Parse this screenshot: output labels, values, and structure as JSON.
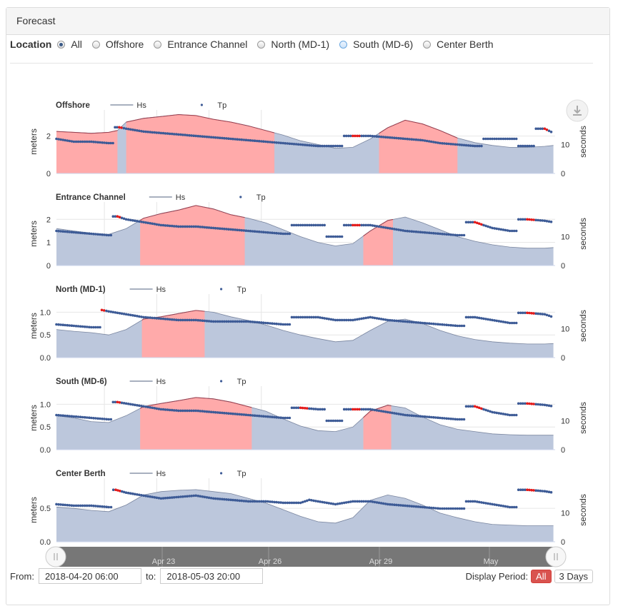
{
  "panel": {
    "title": "Forecast"
  },
  "location": {
    "label": "Location",
    "options": [
      "All",
      "Offshore",
      "Entrance Channel",
      "North (MD-1)",
      "South (MD-6)",
      "Center Berth"
    ],
    "selected": "All"
  },
  "legend": {
    "hs": "Hs",
    "tp": "Tp"
  },
  "axes": {
    "left": "meters",
    "right": "seconds"
  },
  "x_ticks": [
    "Apr 23",
    "Apr 26",
    "Apr 29",
    "May"
  ],
  "navigator_ticks": [
    "Apr 23",
    "Apr 26",
    "Apr 29",
    "May"
  ],
  "range": {
    "from_label": "From:",
    "from": "2018-04-20 06:00",
    "to_label": "to:",
    "to": "2018-05-03 20:00"
  },
  "period": {
    "label": "Display Period:",
    "options": [
      "All",
      "3 Days"
    ],
    "selected": "All"
  },
  "colors": {
    "hs_fill": "#bcc7dc",
    "hs_line": "#51607f",
    "exceed_fill": "#ffaaaa",
    "exceed_line": "#e31a1a",
    "tp_dot": "#3d5b96",
    "tp_dot_hi": "#e31a1a"
  },
  "chart_data": [
    {
      "type": "area",
      "title": "Offshore",
      "x_unit": "day offset from 2018-04-20 06:00",
      "ylabel": "meters",
      "ylim": [
        0,
        3.4
      ],
      "yticks": [
        "0",
        "2"
      ],
      "y2label": "seconds",
      "y2lim": [
        0,
        22
      ],
      "y2ticks": [
        "0",
        "10"
      ],
      "hs": [
        [
          0,
          2.25
        ],
        [
          1,
          2.2
        ],
        [
          2,
          2.15
        ],
        [
          3,
          2.2
        ],
        [
          3.5,
          2.3
        ],
        [
          4,
          2.75
        ],
        [
          5,
          2.95
        ],
        [
          6,
          3.05
        ],
        [
          7,
          3.15
        ],
        [
          8,
          3.1
        ],
        [
          9,
          2.9
        ],
        [
          10,
          2.75
        ],
        [
          11,
          2.55
        ],
        [
          12,
          2.3
        ],
        [
          13,
          2.05
        ],
        [
          14,
          1.75
        ],
        [
          15,
          1.55
        ],
        [
          16,
          1.35
        ],
        [
          17,
          1.4
        ],
        [
          18,
          1.85
        ],
        [
          19,
          2.45
        ],
        [
          20,
          2.85
        ],
        [
          21,
          2.65
        ],
        [
          22,
          2.3
        ],
        [
          23,
          1.9
        ],
        [
          24,
          1.65
        ],
        [
          25,
          1.5
        ],
        [
          26,
          1.4
        ],
        [
          27,
          1.4
        ],
        [
          28,
          1.45
        ],
        [
          28.5,
          1.5
        ]
      ],
      "exceed": [
        [
          0,
          3.5
        ],
        [
          4,
          12.5
        ],
        [
          18.5,
          23
        ]
      ],
      "tp": [
        [
          0,
          12
        ],
        [
          1,
          11
        ],
        [
          2,
          11
        ],
        [
          3,
          10.5
        ],
        [
          3.6,
          16
        ],
        [
          4,
          15.5
        ],
        [
          5,
          14.5
        ],
        [
          6,
          14
        ],
        [
          7,
          13.5
        ],
        [
          8,
          13
        ],
        [
          9,
          12.5
        ],
        [
          10,
          12
        ],
        [
          11,
          11.5
        ],
        [
          12,
          11
        ],
        [
          13,
          10.5
        ],
        [
          14,
          10
        ],
        [
          15,
          9.5
        ],
        [
          16,
          9.5
        ],
        [
          17,
          13
        ],
        [
          18,
          13
        ],
        [
          19,
          12.5
        ],
        [
          20,
          12
        ],
        [
          21,
          11.5
        ],
        [
          22,
          10.5
        ],
        [
          23,
          10
        ],
        [
          24,
          9.5
        ],
        [
          25,
          12
        ],
        [
          26,
          12
        ],
        [
          27,
          9.5
        ],
        [
          28,
          15.5
        ],
        [
          28.5,
          14
        ]
      ]
    },
    {
      "type": "area",
      "title": "Entrance Channel",
      "x_unit": "day offset from 2018-04-20 06:00",
      "ylabel": "meters",
      "ylim": [
        0,
        2.75
      ],
      "yticks": [
        "0",
        "1",
        "2"
      ],
      "y2label": "seconds",
      "y2lim": [
        0,
        22
      ],
      "y2ticks": [
        "0",
        "10"
      ],
      "hs": [
        [
          0,
          1.6
        ],
        [
          1,
          1.5
        ],
        [
          2,
          1.4
        ],
        [
          3,
          1.35
        ],
        [
          4,
          1.6
        ],
        [
          5,
          2.05
        ],
        [
          6,
          2.25
        ],
        [
          7,
          2.4
        ],
        [
          8,
          2.6
        ],
        [
          9,
          2.45
        ],
        [
          10,
          2.2
        ],
        [
          11,
          2.05
        ],
        [
          12,
          1.85
        ],
        [
          13,
          1.55
        ],
        [
          14,
          1.25
        ],
        [
          15,
          1.0
        ],
        [
          16,
          0.85
        ],
        [
          17,
          0.95
        ],
        [
          18,
          1.5
        ],
        [
          19,
          1.95
        ],
        [
          20,
          2.1
        ],
        [
          21,
          1.85
        ],
        [
          22,
          1.55
        ],
        [
          23,
          1.25
        ],
        [
          24,
          1.05
        ],
        [
          25,
          0.9
        ],
        [
          26,
          0.8
        ],
        [
          27,
          0.75
        ],
        [
          28,
          0.75
        ],
        [
          28.5,
          0.78
        ]
      ],
      "exceed": [
        [
          4.8,
          10.8
        ],
        [
          17.6,
          19.3
        ]
      ],
      "tp": [
        [
          0,
          12
        ],
        [
          1,
          11.5
        ],
        [
          2,
          11
        ],
        [
          3,
          10.5
        ],
        [
          3.5,
          17
        ],
        [
          4,
          16
        ],
        [
          5,
          15
        ],
        [
          6,
          14
        ],
        [
          7,
          13.5
        ],
        [
          8,
          13.5
        ],
        [
          9,
          13
        ],
        [
          10,
          12.5
        ],
        [
          11,
          12
        ],
        [
          12,
          11.5
        ],
        [
          13,
          11
        ],
        [
          14,
          14
        ],
        [
          15,
          14
        ],
        [
          16,
          10
        ],
        [
          17,
          14
        ],
        [
          18,
          14
        ],
        [
          19,
          13
        ],
        [
          20,
          12
        ],
        [
          21,
          11.5
        ],
        [
          22,
          11
        ],
        [
          23,
          10.5
        ],
        [
          24,
          15
        ],
        [
          25,
          13
        ],
        [
          26,
          12
        ],
        [
          27,
          16
        ],
        [
          28,
          15.5
        ],
        [
          28.5,
          15
        ]
      ]
    },
    {
      "type": "area",
      "title": "North (MD-1)",
      "x_unit": "day offset from 2018-04-20 06:00",
      "ylabel": "meters",
      "ylim": [
        0,
        1.4
      ],
      "yticks": [
        "0.0",
        "0.5",
        "1.0"
      ],
      "y2label": "seconds",
      "y2lim": [
        0,
        22
      ],
      "y2ticks": [
        "0",
        "10"
      ],
      "hs": [
        [
          0,
          0.62
        ],
        [
          1,
          0.58
        ],
        [
          2,
          0.55
        ],
        [
          3,
          0.5
        ],
        [
          4,
          0.62
        ],
        [
          5,
          0.85
        ],
        [
          6,
          0.9
        ],
        [
          7,
          0.97
        ],
        [
          8,
          1.04
        ],
        [
          9,
          1.0
        ],
        [
          10,
          0.9
        ],
        [
          11,
          0.82
        ],
        [
          12,
          0.72
        ],
        [
          13,
          0.6
        ],
        [
          14,
          0.5
        ],
        [
          15,
          0.42
        ],
        [
          16,
          0.35
        ],
        [
          17,
          0.38
        ],
        [
          18,
          0.6
        ],
        [
          19,
          0.8
        ],
        [
          20,
          0.85
        ],
        [
          21,
          0.75
        ],
        [
          22,
          0.6
        ],
        [
          23,
          0.48
        ],
        [
          24,
          0.4
        ],
        [
          25,
          0.35
        ],
        [
          26,
          0.32
        ],
        [
          27,
          0.3
        ],
        [
          28,
          0.3
        ],
        [
          28.5,
          0.31
        ]
      ],
      "exceed": [
        [
          4.9,
          8.5
        ]
      ],
      "tp": [
        [
          0,
          11.5
        ],
        [
          1,
          11
        ],
        [
          2,
          10.5
        ],
        [
          2.5,
          10.5
        ],
        [
          2.6,
          16.5
        ],
        [
          3,
          16
        ],
        [
          4,
          15
        ],
        [
          5,
          14
        ],
        [
          6,
          13.5
        ],
        [
          7,
          13
        ],
        [
          8,
          13
        ],
        [
          9,
          12.5
        ],
        [
          10,
          12.5
        ],
        [
          11,
          12.5
        ],
        [
          12,
          12
        ],
        [
          13,
          11.5
        ],
        [
          14,
          14
        ],
        [
          15,
          14
        ],
        [
          16,
          13
        ],
        [
          17,
          13
        ],
        [
          18,
          14
        ],
        [
          19,
          13
        ],
        [
          20,
          12.5
        ],
        [
          21,
          12
        ],
        [
          22,
          11.5
        ],
        [
          23,
          11
        ],
        [
          24,
          14
        ],
        [
          25,
          13
        ],
        [
          26,
          12
        ],
        [
          27,
          15.5
        ],
        [
          28,
          15
        ],
        [
          28.5,
          14
        ]
      ]
    },
    {
      "type": "area",
      "title": "South (MD-6)",
      "x_unit": "day offset from 2018-04-20 06:00",
      "ylabel": "meters",
      "ylim": [
        0,
        1.4
      ],
      "yticks": [
        "0.0",
        "0.5",
        "1.0"
      ],
      "y2label": "seconds",
      "y2lim": [
        0,
        22
      ],
      "y2ticks": [
        "0",
        "10"
      ],
      "hs": [
        [
          0,
          0.75
        ],
        [
          1,
          0.7
        ],
        [
          2,
          0.62
        ],
        [
          3,
          0.6
        ],
        [
          4,
          0.75
        ],
        [
          5,
          0.95
        ],
        [
          6,
          1.02
        ],
        [
          7,
          1.08
        ],
        [
          8,
          1.15
        ],
        [
          9,
          1.12
        ],
        [
          10,
          1.05
        ],
        [
          11,
          0.95
        ],
        [
          12,
          0.85
        ],
        [
          13,
          0.68
        ],
        [
          14,
          0.52
        ],
        [
          15,
          0.42
        ],
        [
          16,
          0.4
        ],
        [
          17,
          0.5
        ],
        [
          18,
          0.85
        ],
        [
          19,
          0.98
        ],
        [
          20,
          0.92
        ],
        [
          21,
          0.72
        ],
        [
          22,
          0.55
        ],
        [
          23,
          0.45
        ],
        [
          24,
          0.4
        ],
        [
          25,
          0.35
        ],
        [
          26,
          0.33
        ],
        [
          27,
          0.32
        ],
        [
          28,
          0.32
        ],
        [
          28.5,
          0.32
        ]
      ],
      "exceed": [
        [
          4.8,
          11.2
        ],
        [
          17.6,
          19.2
        ]
      ],
      "tp": [
        [
          0,
          12
        ],
        [
          1,
          11.5
        ],
        [
          2,
          11
        ],
        [
          3,
          10.5
        ],
        [
          3.5,
          16.5
        ],
        [
          4,
          16
        ],
        [
          5,
          15
        ],
        [
          6,
          14
        ],
        [
          7,
          13.5
        ],
        [
          8,
          13.5
        ],
        [
          9,
          13
        ],
        [
          10,
          12.5
        ],
        [
          11,
          12
        ],
        [
          12,
          11.5
        ],
        [
          13,
          11
        ],
        [
          14,
          14.5
        ],
        [
          15,
          14
        ],
        [
          16,
          10
        ],
        [
          17,
          14
        ],
        [
          18,
          14
        ],
        [
          19,
          13
        ],
        [
          20,
          12
        ],
        [
          21,
          11.5
        ],
        [
          22,
          11
        ],
        [
          23,
          10.5
        ],
        [
          24,
          15
        ],
        [
          25,
          13
        ],
        [
          26,
          12
        ],
        [
          27,
          16
        ],
        [
          28,
          15.5
        ],
        [
          28.5,
          15
        ]
      ]
    },
    {
      "type": "area",
      "title": "Center Berth",
      "x_unit": "day offset from 2018-04-20 06:00",
      "ylabel": "meters",
      "ylim": [
        0,
        0.95
      ],
      "yticks": [
        "0.0",
        "0.5"
      ],
      "y2label": "seconds",
      "y2lim": [
        0,
        22
      ],
      "y2ticks": [
        "0",
        "10"
      ],
      "hs": [
        [
          0,
          0.52
        ],
        [
          1,
          0.5
        ],
        [
          2,
          0.47
        ],
        [
          3,
          0.45
        ],
        [
          4,
          0.55
        ],
        [
          5,
          0.7
        ],
        [
          6,
          0.75
        ],
        [
          7,
          0.77
        ],
        [
          8,
          0.78
        ],
        [
          9,
          0.75
        ],
        [
          10,
          0.72
        ],
        [
          11,
          0.65
        ],
        [
          12,
          0.58
        ],
        [
          13,
          0.48
        ],
        [
          14,
          0.38
        ],
        [
          15,
          0.3
        ],
        [
          16,
          0.28
        ],
        [
          17,
          0.36
        ],
        [
          18,
          0.62
        ],
        [
          19,
          0.7
        ],
        [
          20,
          0.65
        ],
        [
          21,
          0.55
        ],
        [
          22,
          0.43
        ],
        [
          23,
          0.36
        ],
        [
          24,
          0.3
        ],
        [
          25,
          0.26
        ],
        [
          26,
          0.25
        ],
        [
          27,
          0.24
        ],
        [
          28,
          0.24
        ],
        [
          28.5,
          0.24
        ]
      ],
      "exceed": [],
      "tp": [
        [
          0,
          13
        ],
        [
          1,
          12.5
        ],
        [
          2,
          12.5
        ],
        [
          3,
          12
        ],
        [
          3.4,
          18
        ],
        [
          4,
          17
        ],
        [
          5,
          16
        ],
        [
          6,
          15
        ],
        [
          7,
          15.5
        ],
        [
          8,
          16
        ],
        [
          9,
          15
        ],
        [
          10,
          14.5
        ],
        [
          11,
          14
        ],
        [
          12,
          14
        ],
        [
          13,
          13.5
        ],
        [
          14,
          13.5
        ],
        [
          14.5,
          14.5
        ],
        [
          15,
          14
        ],
        [
          16,
          13
        ],
        [
          17,
          14
        ],
        [
          18,
          14
        ],
        [
          19,
          13
        ],
        [
          20,
          12.5
        ],
        [
          21,
          12
        ],
        [
          22,
          11.5
        ],
        [
          23,
          11.5
        ],
        [
          24,
          14
        ],
        [
          25,
          13
        ],
        [
          26,
          12
        ],
        [
          27,
          18
        ],
        [
          28,
          17.5
        ],
        [
          28.5,
          17
        ]
      ]
    }
  ]
}
